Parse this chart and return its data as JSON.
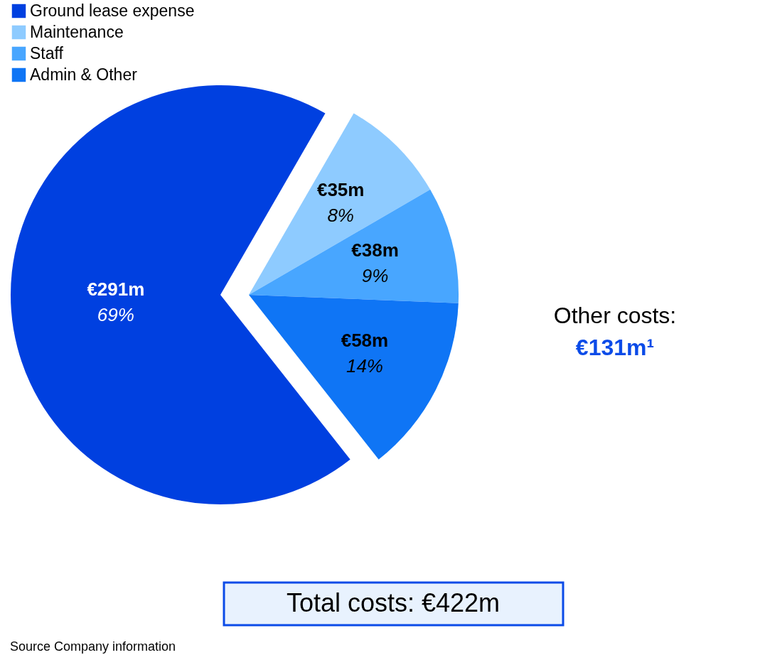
{
  "chart_data": {
    "type": "pie",
    "categories": [
      "Ground lease expense",
      "Maintenance",
      "Staff",
      "Admin & Other"
    ],
    "values": [
      291,
      35,
      38,
      58
    ],
    "colors": [
      "#0040e0",
      "#8ecbff",
      "#48a6ff",
      "#0f75f5"
    ],
    "value_labels": [
      "€291m",
      "€35m",
      "€38m",
      "€58m"
    ],
    "legend": "top left",
    "annotations": [
      "Other costs:",
      "€131m¹",
      "Total costs: €422m",
      "Source Company information",
      "69%",
      "8%",
      "9%",
      "14%"
    ]
  }
}
